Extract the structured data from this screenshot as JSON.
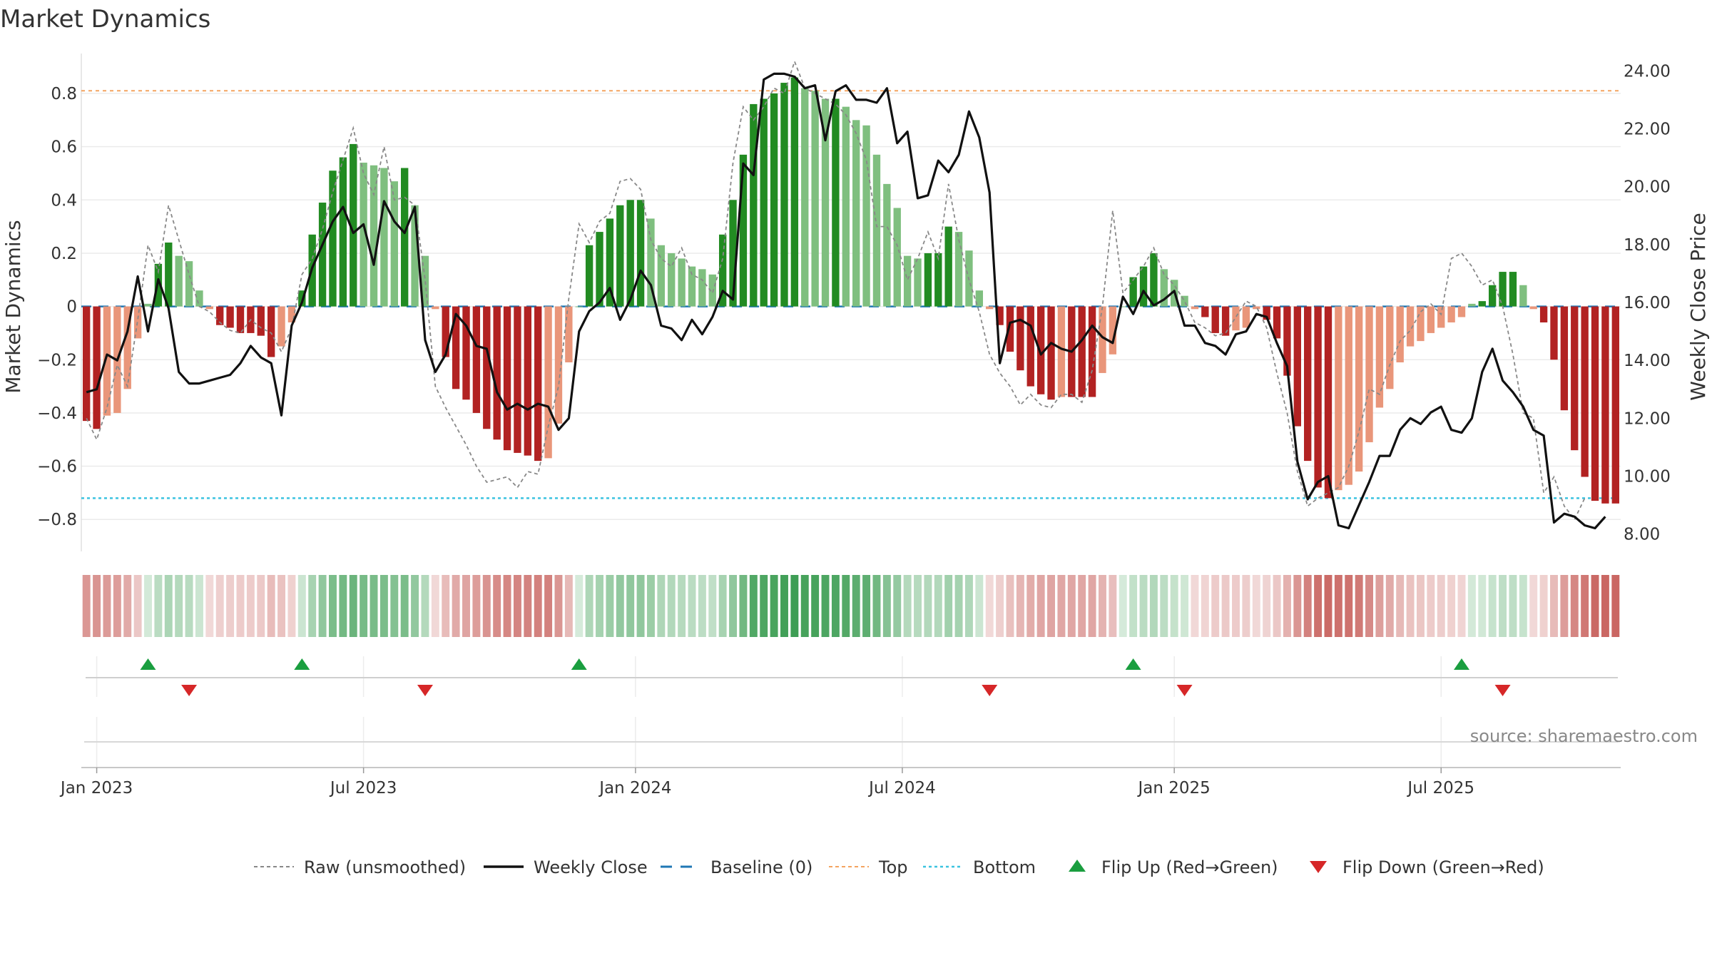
{
  "title": "Market Dynamics",
  "source": "source: sharemaestro.com",
  "chart_data": {
    "type": "bar",
    "ylabel": "Market Dynamics",
    "y2label": "Weekly Close Price",
    "ylim": [
      -0.92,
      0.95
    ],
    "y2lim": [
      7.4,
      24.6
    ],
    "y_ticks": [
      -0.8,
      -0.6,
      -0.4,
      -0.2,
      0.0,
      0.2,
      0.4,
      0.6,
      0.8
    ],
    "y_tick_labels": [
      "−0.8",
      "−0.6",
      "−0.4",
      "−0.2",
      "0",
      "0.2",
      "0.4",
      "0.6",
      "0.8"
    ],
    "y2_ticks": [
      8,
      10,
      12,
      14,
      16,
      18,
      20,
      22,
      24
    ],
    "y2_tick_labels": [
      "8.00",
      "10.00",
      "12.00",
      "14.00",
      "16.00",
      "18.00",
      "20.00",
      "22.00",
      "24.00"
    ],
    "x_ticks": [
      {
        "label": "Jan 2023",
        "week": 1.5
      },
      {
        "label": "Jul 2023",
        "week": 27.5
      },
      {
        "label": "Jan 2024",
        "week": 54
      },
      {
        "label": "Jul 2024",
        "week": 80
      },
      {
        "label": "Jan 2025",
        "week": 106.5
      },
      {
        "label": "Jul 2025",
        "week": 132.5
      }
    ],
    "top_level": 0.81,
    "bottom_level": -0.72,
    "baseline": 0,
    "momentum": [
      -0.43,
      -0.46,
      -0.41,
      -0.4,
      -0.31,
      -0.12,
      0.01,
      0.16,
      0.24,
      0.19,
      0.17,
      0.06,
      -0.01,
      -0.07,
      -0.08,
      -0.1,
      -0.1,
      -0.11,
      -0.19,
      -0.15,
      -0.06,
      0.06,
      0.27,
      0.39,
      0.51,
      0.56,
      0.61,
      0.54,
      0.53,
      0.52,
      0.47,
      0.52,
      0.38,
      0.19,
      -0.01,
      -0.19,
      -0.31,
      -0.35,
      -0.4,
      -0.46,
      -0.5,
      -0.54,
      -0.55,
      -0.56,
      -0.58,
      -0.57,
      -0.44,
      -0.21,
      0.0,
      0.23,
      0.28,
      0.33,
      0.38,
      0.4,
      0.4,
      0.33,
      0.23,
      0.2,
      0.18,
      0.15,
      0.14,
      0.12,
      0.27,
      0.4,
      0.57,
      0.76,
      0.78,
      0.8,
      0.84,
      0.86,
      0.82,
      0.81,
      0.78,
      0.78,
      0.75,
      0.7,
      0.68,
      0.57,
      0.46,
      0.37,
      0.19,
      0.18,
      0.2,
      0.2,
      0.3,
      0.28,
      0.21,
      0.06,
      -0.01,
      -0.07,
      -0.17,
      -0.24,
      -0.3,
      -0.33,
      -0.35,
      -0.34,
      -0.34,
      -0.34,
      -0.34,
      -0.25,
      -0.18,
      0.0,
      0.11,
      0.15,
      0.2,
      0.14,
      0.1,
      0.04,
      -0.01,
      -0.04,
      -0.1,
      -0.11,
      -0.09,
      -0.08,
      -0.01,
      -0.05,
      -0.12,
      -0.26,
      -0.45,
      -0.58,
      -0.68,
      -0.72,
      -0.69,
      -0.67,
      -0.62,
      -0.51,
      -0.38,
      -0.31,
      -0.21,
      -0.15,
      -0.13,
      -0.1,
      -0.08,
      -0.06,
      -0.04,
      0.01,
      0.02,
      0.08,
      0.13,
      0.13,
      0.08,
      -0.01,
      -0.06,
      -0.2,
      -0.39,
      -0.54,
      -0.64,
      -0.73,
      -0.74,
      -0.74
    ],
    "raw": [
      -0.42,
      -0.5,
      -0.38,
      -0.22,
      -0.3,
      -0.05,
      0.23,
      0.13,
      0.38,
      0.25,
      0.12,
      0.0,
      -0.02,
      -0.06,
      -0.09,
      -0.1,
      -0.05,
      -0.08,
      -0.1,
      -0.17,
      -0.08,
      0.12,
      0.18,
      0.29,
      0.43,
      0.55,
      0.67,
      0.5,
      0.42,
      0.6,
      0.4,
      0.41,
      0.38,
      0.1,
      -0.3,
      -0.38,
      -0.45,
      -0.52,
      -0.6,
      -0.66,
      -0.65,
      -0.64,
      -0.68,
      -0.62,
      -0.63,
      -0.45,
      -0.3,
      0.03,
      0.31,
      0.24,
      0.32,
      0.35,
      0.47,
      0.48,
      0.44,
      0.25,
      0.18,
      0.15,
      0.22,
      0.12,
      0.1,
      0.05,
      0.18,
      0.54,
      0.75,
      0.7,
      0.75,
      0.82,
      0.8,
      0.92,
      0.82,
      0.8,
      0.78,
      0.76,
      0.72,
      0.65,
      0.55,
      0.3,
      0.3,
      0.23,
      0.1,
      0.18,
      0.28,
      0.18,
      0.46,
      0.25,
      0.1,
      -0.02,
      -0.18,
      -0.25,
      -0.3,
      -0.37,
      -0.33,
      -0.37,
      -0.38,
      -0.33,
      -0.33,
      -0.36,
      -0.24,
      0.0,
      0.36,
      0.05,
      0.1,
      0.15,
      0.22,
      0.12,
      0.08,
      0.02,
      -0.06,
      -0.08,
      -0.11,
      -0.1,
      -0.04,
      0.02,
      0.0,
      -0.08,
      -0.25,
      -0.4,
      -0.62,
      -0.75,
      -0.72,
      -0.7,
      -0.68,
      -0.6,
      -0.47,
      -0.31,
      -0.33,
      -0.22,
      -0.13,
      -0.09,
      -0.02,
      0.01,
      -0.03,
      0.18,
      0.2,
      0.15,
      0.08,
      0.1,
      0.0,
      -0.18,
      -0.4,
      -0.42,
      -0.7,
      -0.64,
      -0.75,
      -0.8,
      -0.72
    ],
    "close": [
      12.9,
      13.0,
      14.2,
      14.0,
      15.0,
      16.9,
      15.0,
      16.8,
      15.8,
      13.6,
      13.2,
      13.2,
      13.3,
      13.4,
      13.5,
      13.9,
      14.5,
      14.1,
      13.9,
      12.1,
      15.2,
      16.0,
      17.2,
      18.0,
      18.8,
      19.3,
      18.4,
      18.7,
      17.3,
      19.5,
      18.8,
      18.4,
      19.3,
      14.7,
      13.6,
      14.2,
      15.6,
      15.2,
      14.5,
      14.4,
      12.9,
      12.3,
      12.5,
      12.3,
      12.5,
      12.4,
      11.6,
      12.0,
      15.0,
      15.7,
      16.0,
      16.5,
      15.4,
      16.1,
      17.1,
      16.6,
      15.2,
      15.1,
      14.7,
      15.4,
      14.9,
      15.5,
      16.4,
      16.1,
      20.8,
      20.4,
      23.7,
      23.9,
      23.9,
      23.8,
      23.4,
      23.5,
      21.6,
      23.3,
      23.5,
      23.0,
      23.0,
      22.9,
      23.4,
      21.5,
      21.9,
      19.6,
      19.7,
      20.9,
      20.5,
      21.1,
      22.6,
      21.7,
      19.8,
      13.9,
      15.3,
      15.4,
      15.2,
      14.2,
      14.6,
      14.4,
      14.3,
      14.7,
      15.2,
      14.8,
      14.6,
      16.2,
      15.6,
      16.4,
      15.9,
      16.1,
      16.4,
      15.2,
      15.2,
      14.6,
      14.5,
      14.2,
      14.9,
      15.0,
      15.6,
      15.5,
      14.6,
      13.8,
      10.5,
      9.2,
      9.8,
      10.0,
      8.3,
      8.2,
      9.0,
      9.8,
      10.7,
      10.7,
      11.6,
      12.0,
      11.8,
      12.2,
      12.4,
      11.6,
      11.5,
      12.0,
      13.6,
      14.4,
      13.3,
      12.9,
      12.4,
      11.6,
      11.4,
      8.4,
      8.7,
      8.6,
      8.3,
      8.2,
      8.6
    ],
    "strength": [
      -0.43,
      -0.46,
      -0.41,
      -0.4,
      -0.31,
      -0.12,
      0.01,
      0.16,
      0.24,
      0.19,
      0.17,
      0.06,
      -0.01,
      -0.07,
      -0.08,
      -0.1,
      -0.1,
      -0.11,
      -0.19,
      -0.15,
      -0.06,
      0.06,
      0.27,
      0.39,
      0.51,
      0.56,
      0.61,
      0.54,
      0.53,
      0.52,
      0.47,
      0.52,
      0.38,
      0.19,
      -0.01,
      -0.19,
      -0.31,
      -0.35,
      -0.4,
      -0.46,
      -0.5,
      -0.54,
      -0.55,
      -0.56,
      -0.58,
      -0.57,
      -0.44,
      -0.21,
      0.0,
      0.23,
      0.28,
      0.33,
      0.38,
      0.4,
      0.4,
      0.33,
      0.23,
      0.2,
      0.18,
      0.15,
      0.14,
      0.12,
      0.27,
      0.4,
      0.57,
      0.76,
      0.78,
      0.8,
      0.84,
      0.86,
      0.82,
      0.81,
      0.78,
      0.78,
      0.75,
      0.7,
      0.68,
      0.57,
      0.46,
      0.37,
      0.19,
      0.18,
      0.2,
      0.2,
      0.3,
      0.28,
      0.21,
      0.06,
      -0.01,
      -0.07,
      -0.17,
      -0.24,
      -0.3,
      -0.33,
      -0.35,
      -0.34,
      -0.34,
      -0.34,
      -0.34,
      -0.25,
      -0.18,
      0.0,
      0.11,
      0.15,
      0.2,
      0.14,
      0.1,
      0.04,
      -0.01,
      -0.04,
      -0.1,
      -0.11,
      -0.09,
      -0.08,
      -0.01,
      -0.05,
      -0.12,
      -0.26,
      -0.45,
      -0.58,
      -0.68,
      -0.72,
      -0.69,
      -0.67,
      -0.62,
      -0.51,
      -0.38,
      -0.31,
      -0.21,
      -0.15,
      -0.13,
      -0.1,
      -0.08,
      -0.06,
      -0.04,
      0.01,
      0.02,
      0.08,
      0.13,
      0.13,
      0.08,
      -0.01,
      -0.06,
      -0.2,
      -0.39,
      -0.54,
      -0.64,
      -0.73,
      -0.74,
      -0.74
    ],
    "flip_up_weeks": [
      6,
      21,
      48,
      102,
      134
    ],
    "flip_down_weeks": [
      10,
      33,
      88,
      107,
      138
    ],
    "legend": [
      {
        "label": "Raw (unsmoothed)",
        "style": "dashed-gray"
      },
      {
        "label": "Weekly Close",
        "style": "solid-black"
      },
      {
        "label": "Baseline (0)",
        "style": "dashed-blue"
      },
      {
        "label": "Top",
        "style": "dotted-orange"
      },
      {
        "label": "Bottom",
        "style": "dotted-cyan"
      },
      {
        "label": "Flip Up (Red→Green)",
        "style": "triangle-up-green"
      },
      {
        "label": "Flip Down (Green→Red)",
        "style": "triangle-down-red"
      }
    ],
    "colors": {
      "strong_green": "#228b22",
      "light_green": "#7fbf7f",
      "strong_red": "#b22222",
      "light_red": "#e9967a",
      "top_line": "#f4a460",
      "bottom_line": "#3bc3e0",
      "baseline": "#1f77b4",
      "raw": "#888888",
      "close": "#111111",
      "flip_up": "#1a9e3f",
      "flip_down": "#d62728"
    }
  }
}
